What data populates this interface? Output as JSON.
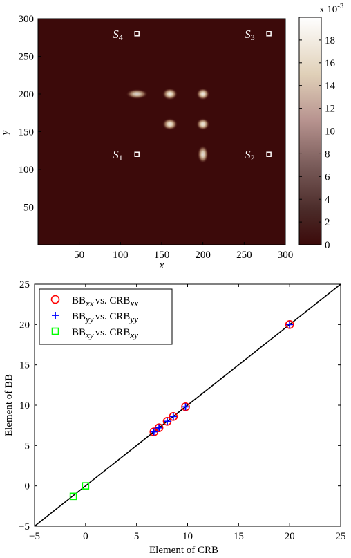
{
  "chart_data": [
    {
      "type": "heatmap",
      "xlabel": "x",
      "ylabel": "y",
      "xlim": [
        0,
        300
      ],
      "ylim": [
        0,
        300
      ],
      "xticks": [
        50,
        100,
        150,
        200,
        250,
        300
      ],
      "yticks": [
        50,
        100,
        150,
        200,
        250,
        300
      ],
      "background_color": "#3c0a0a",
      "colorbar": {
        "multiplier_label": "x 10",
        "multiplier_exp": "-3",
        "ticks": [
          0,
          2,
          4,
          6,
          8,
          10,
          12,
          14,
          16,
          18
        ],
        "range": [
          0,
          0.02
        ]
      },
      "blobs": [
        {
          "x": 120,
          "y": 200,
          "sx": 10,
          "sy": 5,
          "peak": 0.8
        },
        {
          "x": 160,
          "y": 200,
          "sx": 7,
          "sy": 6,
          "peak": 0.9
        },
        {
          "x": 200,
          "y": 200,
          "sx": 6,
          "sy": 6,
          "peak": 0.9
        },
        {
          "x": 160,
          "y": 160,
          "sx": 7,
          "sy": 6,
          "peak": 0.9
        },
        {
          "x": 200,
          "y": 160,
          "sx": 6,
          "sy": 6,
          "peak": 0.9
        },
        {
          "x": 200,
          "y": 120,
          "sx": 5,
          "sy": 9,
          "peak": 0.85
        }
      ],
      "sensors": [
        {
          "name": "S",
          "sub": "4",
          "x": 120,
          "y": 280
        },
        {
          "name": "S",
          "sub": "3",
          "x": 280,
          "y": 280
        },
        {
          "name": "S",
          "sub": "1",
          "x": 120,
          "y": 120
        },
        {
          "name": "S",
          "sub": "2",
          "x": 280,
          "y": 120
        }
      ]
    },
    {
      "type": "scatter",
      "xlabel": "Element of CRB",
      "ylabel": "Element of BB",
      "xlim": [
        -5,
        25
      ],
      "ylim": [
        -5,
        25
      ],
      "xticks": [
        -5,
        0,
        5,
        10,
        15,
        20,
        25
      ],
      "yticks": [
        -5,
        0,
        5,
        10,
        15,
        20,
        25
      ],
      "reference_line": [
        [
          -5,
          -5
        ],
        [
          25,
          25
        ]
      ],
      "legend_position": "top-left",
      "series": [
        {
          "name": "BB",
          "name_sub": "xx",
          "vs": "vs. CRB",
          "vs_sub": "xx",
          "marker": "circle",
          "color": "#ff0000",
          "x": [
            6.7,
            7.2,
            8.0,
            8.6,
            9.8,
            20.0
          ],
          "y": [
            6.7,
            7.2,
            8.0,
            8.6,
            9.8,
            20.0
          ]
        },
        {
          "name": "BB",
          "name_sub": "yy",
          "vs": "vs. CRB",
          "vs_sub": "yy",
          "marker": "plus",
          "color": "#0000ff",
          "x": [
            6.7,
            7.2,
            8.0,
            8.6,
            9.8,
            20.0
          ],
          "y": [
            6.7,
            7.2,
            8.0,
            8.6,
            9.8,
            20.0
          ]
        },
        {
          "name": "BB",
          "name_sub": "xy",
          "vs": "vs. CRB",
          "vs_sub": "xy",
          "marker": "square",
          "color": "#00ff00",
          "x": [
            -1.2,
            0.0
          ],
          "y": [
            -1.3,
            0.0
          ]
        }
      ]
    }
  ]
}
